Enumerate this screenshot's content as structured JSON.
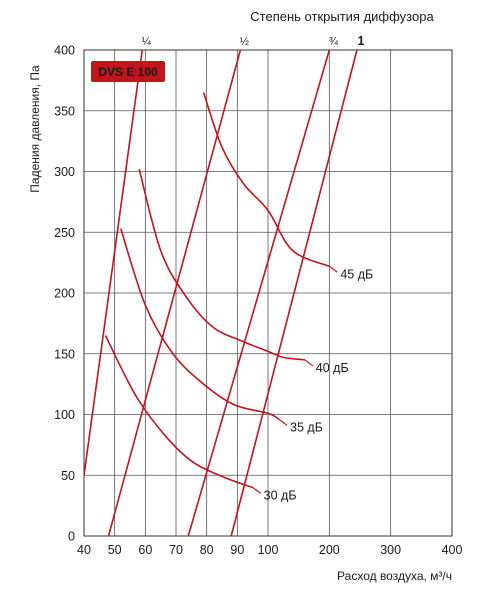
{
  "chart_data": {
    "type": "line",
    "title": "Степень открытия диффузора",
    "badge": "DVS E 100",
    "xlabel": "Расход воздуха, м³/ч",
    "ylabel": "Падения давления, Па",
    "x_ticks": [
      "40",
      "50",
      "60",
      "70",
      "80",
      "90",
      "100",
      "200",
      "300",
      "400"
    ],
    "y_ticks": [
      "0",
      "50",
      "100",
      "150",
      "200",
      "250",
      "300",
      "350",
      "400"
    ],
    "ylim": [
      0,
      400
    ],
    "grid": true,
    "colors": {
      "curve": "#c0151d",
      "grid": "#555555",
      "badge_bg": "#c0151d",
      "badge_text": "#ffffff"
    },
    "opening_series": [
      {
        "name": "¼",
        "points": [
          [
            40,
            50
          ],
          [
            59,
            400
          ]
        ]
      },
      {
        "name": "½",
        "points": [
          [
            48,
            0
          ],
          [
            91,
            400
          ]
        ]
      },
      {
        "name": "¾",
        "points": [
          [
            74,
            0
          ],
          [
            200,
            400
          ]
        ]
      },
      {
        "name": "1",
        "points": [
          [
            88,
            0
          ],
          [
            245,
            400
          ]
        ]
      }
    ],
    "noise_series": [
      {
        "name": "30 дБ",
        "points": [
          [
            47,
            165
          ],
          [
            57,
            115
          ],
          [
            67,
            81
          ],
          [
            76,
            60
          ],
          [
            87,
            47
          ],
          [
            95,
            40
          ]
        ]
      },
      {
        "name": "35 дБ",
        "points": [
          [
            52,
            253
          ],
          [
            60,
            190
          ],
          [
            69,
            150
          ],
          [
            79,
            125
          ],
          [
            89,
            108
          ],
          [
            100,
            101
          ],
          [
            118,
            96
          ]
        ]
      },
      {
        "name": "40 дБ",
        "points": [
          [
            58,
            302
          ],
          [
            65,
            235
          ],
          [
            73,
            198
          ],
          [
            82,
            172
          ],
          [
            92,
            160
          ],
          [
            100,
            152
          ],
          [
            125,
            147
          ],
          [
            160,
            145
          ]
        ]
      },
      {
        "name": "45 дБ",
        "points": [
          [
            79,
            365
          ],
          [
            85,
            320
          ],
          [
            92,
            290
          ],
          [
            100,
            268
          ],
          [
            140,
            235
          ],
          [
            200,
            222
          ]
        ]
      }
    ]
  }
}
